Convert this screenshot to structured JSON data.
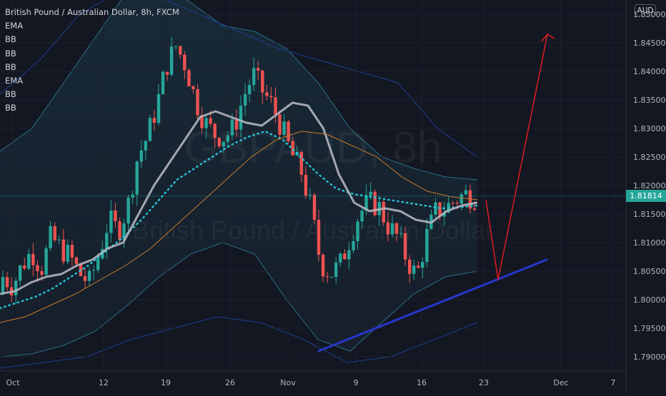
{
  "legend": {
    "title": "British Pound / Australian Dollar, 8h, FXCM",
    "indicators": [
      "EMA",
      "BB",
      "BB",
      "BB",
      "EMA",
      "BB",
      "BB"
    ]
  },
  "watermark": {
    "symbol": "GBPAUD, 8h",
    "name": "British Pound / Australian Dollar"
  },
  "price_axis": {
    "currency": "AUD",
    "labels": [
      "1.85000",
      "1.84500",
      "1.84000",
      "1.83500",
      "1.83000",
      "1.82500",
      "1.82000",
      "1.81500",
      "1.81000",
      "1.80500",
      "1.80000",
      "1.79500",
      "1.79000"
    ],
    "current_price": "1.81814"
  },
  "time_axis": {
    "labels": [
      "Oct",
      "12",
      "19",
      "26",
      "Nov",
      "9",
      "16",
      "23",
      "Dec",
      "7"
    ]
  },
  "colors": {
    "background": "#131722",
    "up_candle": "#26a69a",
    "down_candle": "#ef5350",
    "ema_fast": "#b2b5be",
    "ema_slow_dots": "#26c6da",
    "trendline": "#2836c9",
    "projection": "#e31b23",
    "price_tag": "#26a69a"
  },
  "chart_data": {
    "type": "candlestick",
    "symbol": "GBP/AUD",
    "timeframe": "8h",
    "source": "FXCM",
    "ylim": [
      1.7875,
      1.8525
    ],
    "current_price": 1.81814,
    "x_ticks": [
      "Oct",
      "12",
      "19",
      "26",
      "Nov",
      "9",
      "16",
      "23",
      "Dec",
      "7"
    ],
    "close_path": [
      1.804,
      1.8025,
      1.806,
      1.8085,
      1.8055,
      1.811,
      1.809,
      1.8075,
      1.8045,
      1.803,
      1.808,
      1.814,
      1.812,
      1.8165,
      1.825,
      1.8285,
      1.834,
      1.841,
      1.8445,
      1.841,
      1.835,
      1.831,
      1.829,
      1.8285,
      1.83,
      1.8355,
      1.8395,
      1.8365,
      1.834,
      1.83,
      1.8255,
      1.8225,
      1.816,
      1.8065,
      1.8045,
      1.806,
      1.8105,
      1.815,
      1.817,
      1.8165,
      1.813,
      1.811,
      1.807,
      1.804,
      1.811,
      1.8155,
      1.816,
      1.8175,
      1.8185,
      1.818
    ],
    "ema_fast_path": [
      1.801,
      1.8015,
      1.803,
      1.804,
      1.8045,
      1.806,
      1.807,
      1.809,
      1.81,
      1.815,
      1.82,
      1.824,
      1.828,
      1.832,
      1.833,
      1.832,
      1.831,
      1.8305,
      1.8325,
      1.8345,
      1.834,
      1.83,
      1.822,
      1.817,
      1.8155,
      1.816,
      1.8155,
      1.814,
      1.8135,
      1.8155,
      1.8165,
      1.817
    ],
    "ema_slow_path": [
      1.7985,
      1.7995,
      1.8005,
      1.802,
      1.804,
      1.806,
      1.8085,
      1.811,
      1.814,
      1.8175,
      1.821,
      1.823,
      1.825,
      1.827,
      1.8285,
      1.8295,
      1.828,
      1.825,
      1.822,
      1.8195,
      1.8185,
      1.818,
      1.8175,
      1.817,
      1.8165,
      1.816,
      1.8162,
      1.8165
    ],
    "trendline": {
      "from": [
        "~Nov 4",
        1.791
      ],
      "to": [
        "~Nov 30",
        1.807
      ]
    },
    "projection": {
      "points": [
        [
          "~Nov 21",
          1.8175
        ],
        [
          "~Nov 24",
          1.8035
        ],
        [
          "~Nov 29",
          1.8465
        ]
      ]
    }
  }
}
